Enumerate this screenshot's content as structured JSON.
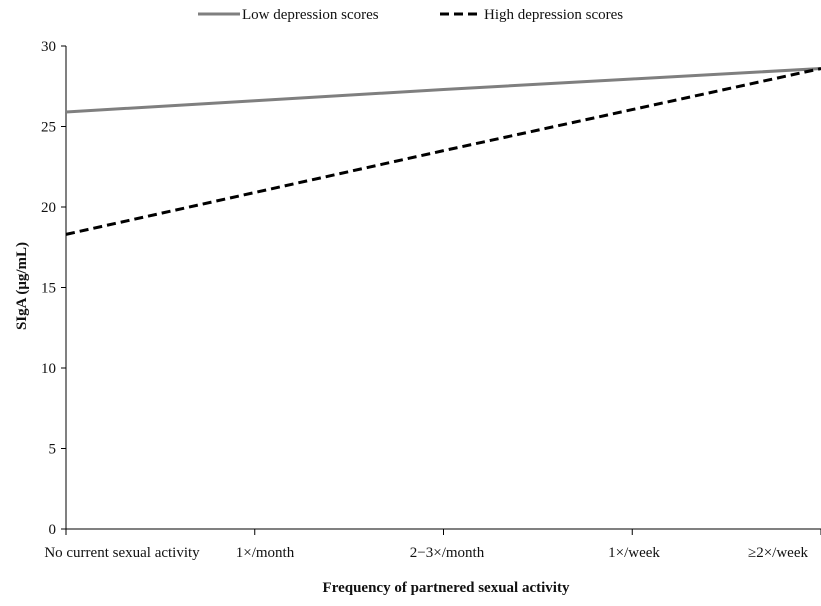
{
  "chart_data": {
    "type": "line",
    "categories": [
      "No current sexual activity",
      "1×/month",
      "2−3×/month",
      "1×/week",
      "≥2×/week"
    ],
    "x": [
      0,
      1,
      2,
      3,
      4
    ],
    "series": [
      {
        "name": "Low depression scores",
        "values": [
          25.9,
          26.6,
          27.3,
          27.95,
          28.6
        ],
        "color": "#7f7f7f",
        "dash": "solid"
      },
      {
        "name": "High depression scores",
        "values": [
          18.3,
          20.9,
          23.5,
          26.05,
          28.6
        ],
        "color": "#000000",
        "dash": "dashed"
      }
    ],
    "xlabel": "Frequency of partnered sexual activity",
    "ylabel": "SIgA  (μg/mL)",
    "ylim": [
      0,
      30
    ],
    "yticks": [
      0,
      5,
      10,
      15,
      20,
      25,
      30
    ],
    "grid": false,
    "legend_position": "top"
  }
}
